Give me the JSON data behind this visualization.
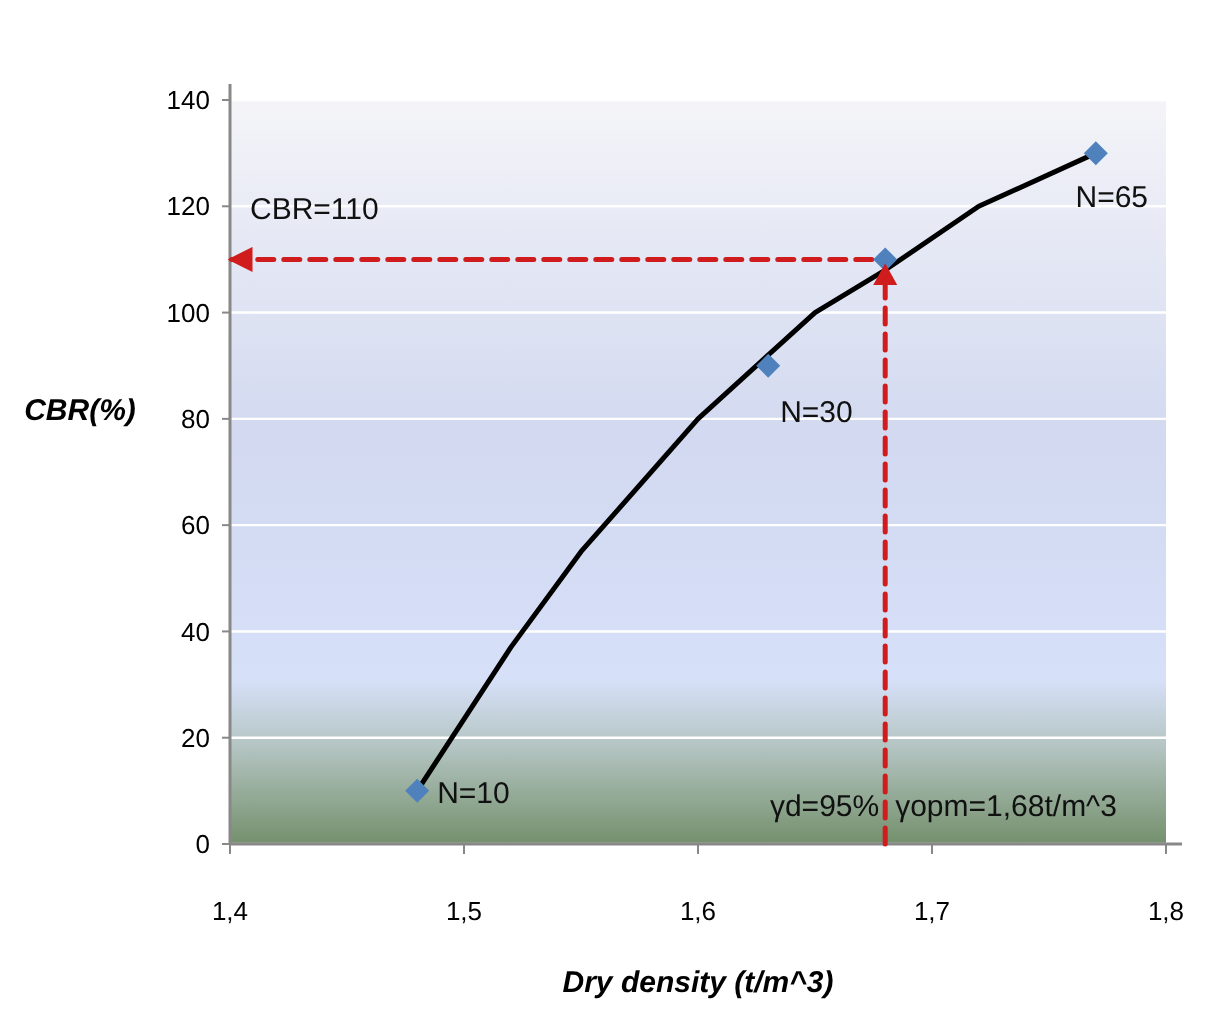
{
  "chart_data": {
    "type": "scatter",
    "xlabel": "Dry density (t/m^3)",
    "ylabel": "CBR(%)",
    "xlim": [
      1.4,
      1.8
    ],
    "xticks": [
      {
        "value": 1.4,
        "label": "1,4"
      },
      {
        "value": 1.5,
        "label": "1,5"
      },
      {
        "value": 1.6,
        "label": "1,6"
      },
      {
        "value": 1.7,
        "label": "1,7"
      },
      {
        "value": 1.8,
        "label": "1,8"
      }
    ],
    "ylim": [
      0,
      140
    ],
    "yticks": [
      0,
      20,
      40,
      60,
      80,
      100,
      120,
      140
    ],
    "grid": "y",
    "series": [
      {
        "type": "line",
        "color": "#000000",
        "line_style": "solid",
        "marker": "none",
        "x": [
          1.48,
          1.52,
          1.55,
          1.6,
          1.65,
          1.68,
          1.72,
          1.77
        ],
        "values": [
          10,
          37,
          55,
          80,
          100,
          108,
          120,
          130
        ]
      },
      {
        "type": "line",
        "color": "#d01c1c",
        "line_style": "dashed",
        "marker": "none",
        "x": [
          1.68,
          1.68,
          1.4
        ],
        "values": [
          0,
          110,
          110
        ]
      },
      {
        "color": "#4f81bd",
        "marker": "diamond",
        "x": [
          1.48,
          1.63,
          1.68,
          1.77
        ],
        "values": [
          10,
          90,
          110,
          130
        ]
      },
      {
        "type": "scatter",
        "color": "#d01c1c",
        "marker": "triangle",
        "x": [
          1.68
        ],
        "values": [
          107
        ]
      }
    ],
    "annotations": [
      {
        "text": "N=10",
        "x": 1.48,
        "y": 10
      },
      {
        "text": "N=30",
        "x": 1.63,
        "y": 90
      },
      {
        "text": "N=65",
        "x": 1.77,
        "y": 130
      },
      {
        "text": "CBR=110",
        "x": 1.4,
        "y": 110
      },
      {
        "text": "γd=95%",
        "x": 1.68,
        "y": 0
      },
      {
        "text": "γopm=1,68t/m^3",
        "x": 1.68,
        "y": 0
      }
    ]
  }
}
